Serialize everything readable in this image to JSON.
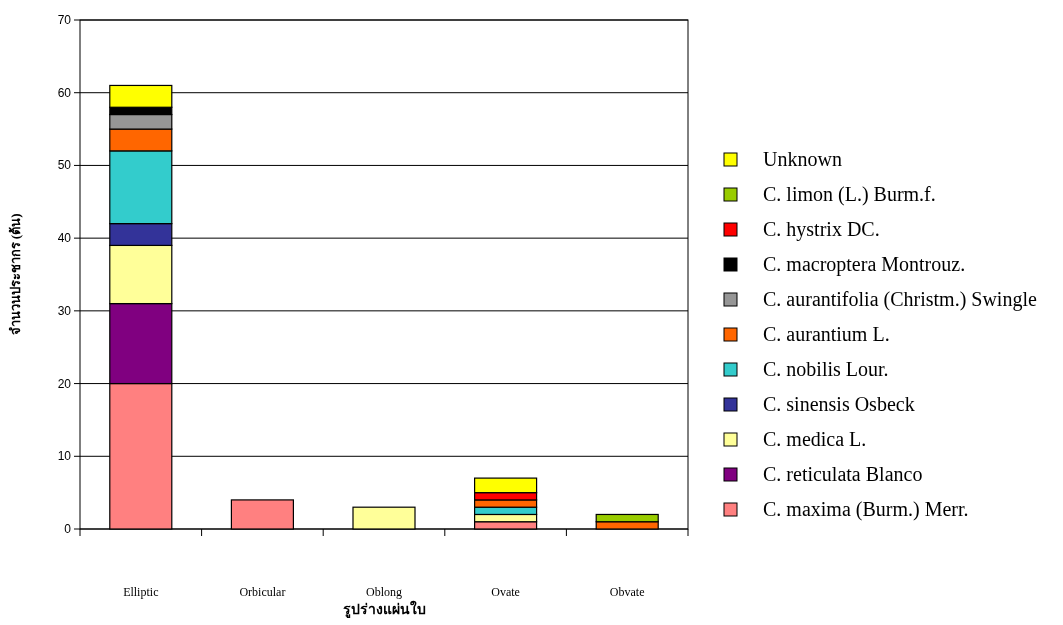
{
  "chart_data": {
    "type": "bar",
    "stacked": true,
    "xlabel": "รูปร่างแผ่นใบ",
    "ylabel": "จำนวนประชากร (ต้น)",
    "categories": [
      "Elliptic",
      "Orbicular",
      "Oblong",
      "Ovate",
      "Obvate"
    ],
    "ylim": [
      0,
      70
    ],
    "yticks": [
      0,
      10,
      20,
      30,
      40,
      50,
      60,
      70
    ],
    "grid": "y",
    "legend": "right",
    "series": [
      {
        "name": "C. maxima (Burm.) Merr.",
        "color": "#ff8080",
        "values": [
          20,
          4,
          0,
          1,
          0
        ]
      },
      {
        "name": "C. reticulata Blanco",
        "color": "#800080",
        "values": [
          11,
          0,
          0,
          0,
          0
        ]
      },
      {
        "name": "C. medica L.",
        "color": "#ffff99",
        "values": [
          8,
          0,
          3,
          1,
          0
        ]
      },
      {
        "name": "C. sinensis Osbeck",
        "color": "#333399",
        "values": [
          3,
          0,
          0,
          0,
          0
        ]
      },
      {
        "name": "C. nobilis Lour.",
        "color": "#33cccc",
        "values": [
          10,
          0,
          0,
          1,
          0
        ]
      },
      {
        "name": "C. aurantium  L.",
        "color": "#ff6600",
        "values": [
          3,
          0,
          0,
          1,
          1
        ]
      },
      {
        "name": "C. aurantifolia (Christm.) Swingle",
        "color": "#969696",
        "values": [
          2,
          0,
          0,
          0,
          0
        ]
      },
      {
        "name": "C. macroptera Montrouz.",
        "color": "#000000",
        "values": [
          1,
          0,
          0,
          0,
          0
        ]
      },
      {
        "name": "C. hystrix DC.",
        "color": "#ff0000",
        "values": [
          0,
          0,
          0,
          1,
          0
        ]
      },
      {
        "name": "C. limon (L.) Burm.f.",
        "color": "#99cc00",
        "values": [
          0,
          0,
          0,
          0,
          1
        ]
      },
      {
        "name": "Unknown",
        "color": "#ffff00",
        "values": [
          3,
          0,
          0,
          2,
          0
        ]
      }
    ]
  }
}
